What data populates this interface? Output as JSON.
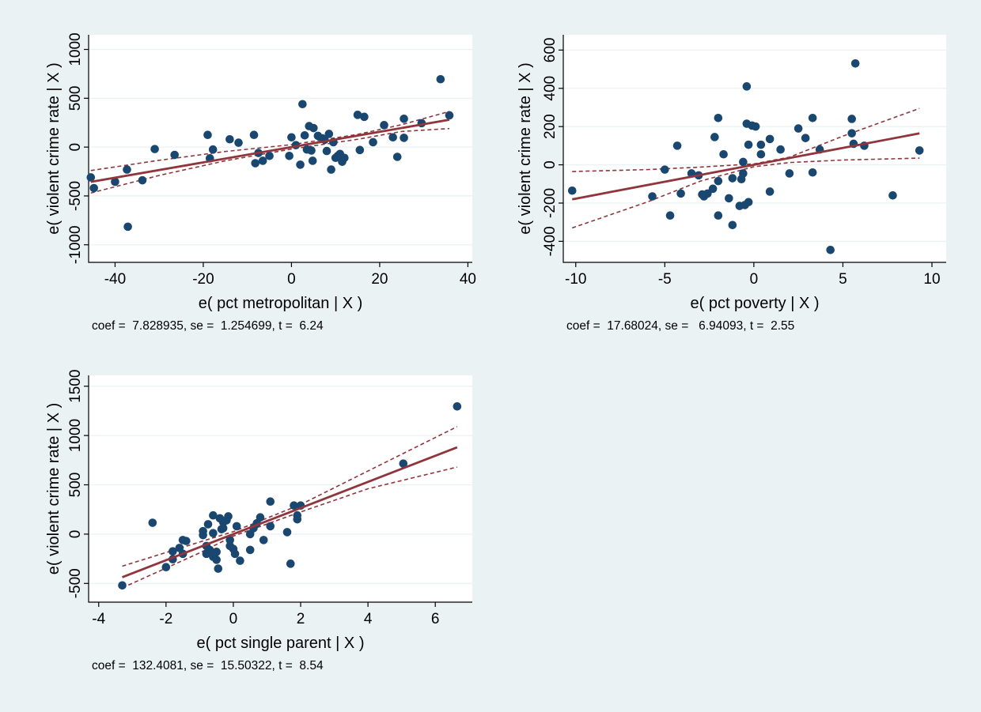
{
  "chart_data": [
    {
      "type": "scatter",
      "xlabel": "e( pct metropolitan | X )",
      "ylabel": "e( violent crime rate | X )",
      "xlim": [
        -46,
        41
      ],
      "ylim": [
        -1180,
        1150
      ],
      "xticks": [
        -40,
        -20,
        0,
        20,
        40
      ],
      "yticks": [
        -1000,
        -500,
        0,
        500,
        1000
      ],
      "grid": true,
      "annotation": "coef =  7.828935, se =  1.254699, t =  6.24",
      "fit": {
        "slope": 7.828935,
        "intercept": 0,
        "x_range": [
          -45.5,
          35.8
        ]
      },
      "ci_upper": [
        [
          -45.5,
          -240
        ],
        [
          -30,
          -135
        ],
        [
          -15,
          -45
        ],
        [
          0,
          25
        ],
        [
          15,
          130
        ],
        [
          25,
          230
        ],
        [
          35.8,
          365
        ]
      ],
      "ci_lower": [
        [
          -45.5,
          -470
        ],
        [
          -30,
          -290
        ],
        [
          -15,
          -140
        ],
        [
          0,
          -20
        ],
        [
          15,
          80
        ],
        [
          25,
          160
        ],
        [
          35.8,
          190
        ]
      ],
      "points": [
        [
          -45.5,
          -310
        ],
        [
          -44.8,
          -420
        ],
        [
          -40,
          -355
        ],
        [
          -37.3,
          -230
        ],
        [
          -37.1,
          -815
        ],
        [
          -33.8,
          -340
        ],
        [
          -31,
          -20
        ],
        [
          -26.5,
          -80
        ],
        [
          -19,
          125
        ],
        [
          -18.5,
          -115
        ],
        [
          -17.8,
          -25
        ],
        [
          -14,
          80
        ],
        [
          -12,
          45
        ],
        [
          -8.5,
          125
        ],
        [
          -8.2,
          -165
        ],
        [
          -7.5,
          -60
        ],
        [
          -6.5,
          -140
        ],
        [
          -5,
          -90
        ],
        [
          -0.5,
          -90
        ],
        [
          0,
          100
        ],
        [
          1,
          20
        ],
        [
          2,
          -180
        ],
        [
          2.5,
          440
        ],
        [
          3,
          120
        ],
        [
          3.5,
          -25
        ],
        [
          4,
          215
        ],
        [
          4.5,
          -35
        ],
        [
          4.8,
          -140
        ],
        [
          5,
          195
        ],
        [
          6,
          115
        ],
        [
          7,
          90
        ],
        [
          7.5,
          75
        ],
        [
          8,
          -40
        ],
        [
          8.5,
          135
        ],
        [
          9,
          -230
        ],
        [
          9.5,
          50
        ],
        [
          10,
          -110
        ],
        [
          10.5,
          -90
        ],
        [
          11,
          -70
        ],
        [
          11.5,
          -150
        ],
        [
          12,
          -110
        ],
        [
          15,
          330
        ],
        [
          15.5,
          -30
        ],
        [
          16.5,
          310
        ],
        [
          18.5,
          50
        ],
        [
          21,
          225
        ],
        [
          23,
          100
        ],
        [
          24,
          -100
        ],
        [
          25.5,
          95
        ],
        [
          25.5,
          290
        ],
        [
          29.5,
          245
        ],
        [
          33.8,
          695
        ],
        [
          35.8,
          325
        ]
      ]
    },
    {
      "type": "scatter",
      "xlabel": "e( pct poverty | X )",
      "ylabel": "e( violent crime rate | X )",
      "xlim": [
        -10.7,
        10.8
      ],
      "ylim": [
        -510,
        680
      ],
      "xticks": [
        -10,
        -5,
        0,
        5,
        10
      ],
      "yticks": [
        -400,
        -200,
        0,
        200,
        400,
        600
      ],
      "grid": true,
      "annotation": "coef =  17.68024, se =   6.94093, t =  2.55",
      "fit": {
        "slope": 17.68024,
        "intercept": 0,
        "x_range": [
          -10.2,
          9.3
        ]
      },
      "ci_upper": [
        [
          -10.2,
          -35
        ],
        [
          -6,
          -25
        ],
        [
          -3,
          -12
        ],
        [
          0,
          5
        ],
        [
          2,
          40
        ],
        [
          5,
          150
        ],
        [
          9.3,
          295
        ]
      ],
      "ci_lower": [
        [
          -10.2,
          -330
        ],
        [
          -6,
          -195
        ],
        [
          -3,
          -85
        ],
        [
          0,
          -10
        ],
        [
          2,
          12
        ],
        [
          5,
          25
        ],
        [
          9.3,
          35
        ]
      ],
      "points": [
        [
          -10.2,
          -135
        ],
        [
          -5.7,
          -165
        ],
        [
          -5.0,
          -25
        ],
        [
          -4.7,
          -265
        ],
        [
          -4.3,
          100
        ],
        [
          -4.1,
          -150
        ],
        [
          -3.5,
          -45
        ],
        [
          -3.1,
          -55
        ],
        [
          -2.9,
          -155
        ],
        [
          -2.8,
          -165
        ],
        [
          -2.6,
          -150
        ],
        [
          -2.3,
          -125
        ],
        [
          -2.2,
          145
        ],
        [
          -2.0,
          245
        ],
        [
          -2.0,
          -85
        ],
        [
          -2.0,
          -265
        ],
        [
          -1.7,
          55
        ],
        [
          -1.4,
          -175
        ],
        [
          -1.2,
          -70
        ],
        [
          -1.2,
          -315
        ],
        [
          -0.8,
          -215
        ],
        [
          -0.7,
          -75
        ],
        [
          -0.6,
          -45
        ],
        [
          -0.6,
          15
        ],
        [
          -0.5,
          -210
        ],
        [
          -0.4,
          215
        ],
        [
          -0.4,
          410
        ],
        [
          -0.3,
          105
        ],
        [
          -0.3,
          -195
        ],
        [
          -0.1,
          205
        ],
        [
          0.1,
          200
        ],
        [
          0.4,
          55
        ],
        [
          0.4,
          105
        ],
        [
          0.9,
          135
        ],
        [
          0.9,
          -140
        ],
        [
          1.5,
          80
        ],
        [
          2.0,
          -45
        ],
        [
          2.5,
          190
        ],
        [
          2.9,
          140
        ],
        [
          3.3,
          245
        ],
        [
          3.3,
          -40
        ],
        [
          3.7,
          80
        ],
        [
          4.3,
          -445
        ],
        [
          5.5,
          240
        ],
        [
          5.5,
          165
        ],
        [
          5.6,
          110
        ],
        [
          5.7,
          530
        ],
        [
          6.2,
          100
        ],
        [
          7.8,
          -160
        ],
        [
          9.3,
          75
        ]
      ]
    },
    {
      "type": "scatter",
      "xlabel": "e( pct single parent | X )",
      "ylabel": "e( violent crime rate | X )",
      "xlim": [
        -4.3,
        7.1
      ],
      "ylim": [
        -690,
        1610
      ],
      "xticks": [
        -4,
        -2,
        0,
        2,
        4,
        6
      ],
      "yticks": [
        -500,
        0,
        500,
        1000,
        1500
      ],
      "grid": true,
      "annotation": "coef =  132.4081, se =  15.50322, t =  8.54",
      "fit": {
        "slope": 132.4081,
        "intercept": 0,
        "x_range": [
          -3.3,
          6.65
        ]
      },
      "ci_upper": [
        [
          -3.3,
          -325
        ],
        [
          -1,
          -80
        ],
        [
          0,
          25
        ],
        [
          2,
          300
        ],
        [
          4,
          640
        ],
        [
          6.65,
          1090
        ]
      ],
      "ci_lower": [
        [
          -3.3,
          -545
        ],
        [
          -1,
          -190
        ],
        [
          0,
          -20
        ],
        [
          2,
          225
        ],
        [
          4,
          460
        ],
        [
          6.65,
          680
        ]
      ],
      "points": [
        [
          -3.3,
          -520
        ],
        [
          -2.4,
          115
        ],
        [
          -2.0,
          -335
        ],
        [
          -1.8,
          -175
        ],
        [
          -1.8,
          -255
        ],
        [
          -1.6,
          -140
        ],
        [
          -1.5,
          -200
        ],
        [
          -1.5,
          -60
        ],
        [
          -1.4,
          -70
        ],
        [
          -0.9,
          30
        ],
        [
          -0.9,
          -10
        ],
        [
          -0.8,
          -200
        ],
        [
          -0.8,
          -120
        ],
        [
          -0.75,
          100
        ],
        [
          -0.7,
          -160
        ],
        [
          -0.6,
          10
        ],
        [
          -0.6,
          -230
        ],
        [
          -0.6,
          190
        ],
        [
          -0.5,
          -180
        ],
        [
          -0.5,
          -260
        ],
        [
          -0.45,
          -350
        ],
        [
          -0.4,
          160
        ],
        [
          -0.35,
          50
        ],
        [
          -0.3,
          120
        ],
        [
          -0.3,
          60
        ],
        [
          -0.2,
          140
        ],
        [
          -0.15,
          180
        ],
        [
          -0.1,
          -60
        ],
        [
          -0.1,
          -120
        ],
        [
          0,
          -150
        ],
        [
          0.05,
          -200
        ],
        [
          0.1,
          80
        ],
        [
          0.2,
          -270
        ],
        [
          0.5,
          -160
        ],
        [
          0.5,
          0
        ],
        [
          0.6,
          60
        ],
        [
          0.7,
          110
        ],
        [
          0.8,
          170
        ],
        [
          0.9,
          -60
        ],
        [
          1.1,
          330
        ],
        [
          1.1,
          80
        ],
        [
          1.6,
          20
        ],
        [
          1.7,
          -300
        ],
        [
          1.8,
          290
        ],
        [
          1.9,
          150
        ],
        [
          1.9,
          190
        ],
        [
          2.0,
          290
        ],
        [
          5.05,
          715
        ],
        [
          6.65,
          1295
        ]
      ]
    }
  ]
}
